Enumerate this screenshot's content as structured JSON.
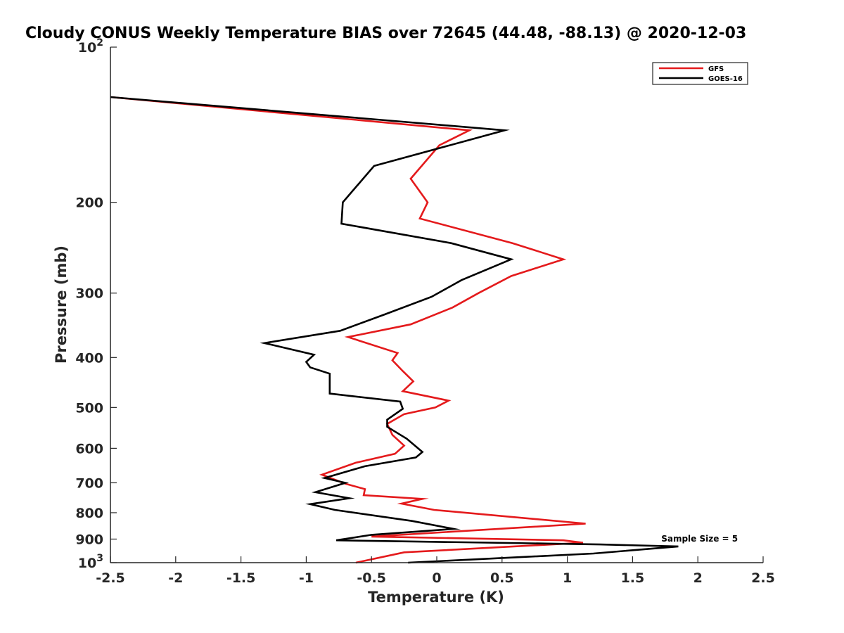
{
  "chart_data": {
    "type": "line",
    "title": "Cloudy CONUS Weekly Temperature BIAS over 72645 (44.48, -88.13) @ 2020-12-03",
    "xlabel": "Temperature (K)",
    "ylabel": "Pressure (mb)",
    "xlim": [
      -2.5,
      2.5
    ],
    "ylim": [
      100,
      1000
    ],
    "yscale": "log",
    "yreversed": true,
    "xticks": [
      "-2.5",
      "-2",
      "-1.5",
      "-1",
      "-0.5",
      "0",
      "0.5",
      "1",
      "1.5",
      "2",
      "2.5"
    ],
    "xtick_values": [
      -2.5,
      -2,
      -1.5,
      -1,
      -0.5,
      0,
      0.5,
      1,
      1.5,
      2,
      2.5
    ],
    "yticks": [
      "200",
      "300",
      "400",
      "500",
      "600",
      "700",
      "800",
      "900"
    ],
    "ytick_values": [
      200,
      300,
      400,
      500,
      600,
      700,
      800,
      900
    ],
    "ytick_extremes": {
      "top": {
        "base": "10",
        "exp": "2",
        "value": 100
      },
      "bottom": {
        "base": "10",
        "exp": "3",
        "value": 1000
      }
    },
    "legend_position": "top-right",
    "grid": false,
    "series": [
      {
        "name": "GFS",
        "color": "#e41a1c",
        "points": [
          [
            -2.5,
            125
          ],
          [
            0.25,
            145
          ],
          [
            0.02,
            155
          ],
          [
            -0.2,
            180
          ],
          [
            -0.07,
            200
          ],
          [
            -0.13,
            215
          ],
          [
            0.58,
            240
          ],
          [
            0.97,
            258
          ],
          [
            0.57,
            278
          ],
          [
            0.32,
            300
          ],
          [
            0.12,
            320
          ],
          [
            -0.2,
            345
          ],
          [
            -0.68,
            365
          ],
          [
            -0.3,
            392
          ],
          [
            -0.34,
            405
          ],
          [
            -0.26,
            425
          ],
          [
            -0.18,
            445
          ],
          [
            -0.26,
            465
          ],
          [
            0.09,
            485
          ],
          [
            -0.01,
            500
          ],
          [
            -0.25,
            515
          ],
          [
            -0.38,
            538
          ],
          [
            -0.34,
            565
          ],
          [
            -0.25,
            593
          ],
          [
            -0.32,
            615
          ],
          [
            -0.62,
            640
          ],
          [
            -0.88,
            675
          ],
          [
            -0.7,
            703
          ],
          [
            -0.55,
            720
          ],
          [
            -0.56,
            740
          ],
          [
            -0.11,
            752
          ],
          [
            -0.27,
            768
          ],
          [
            -0.02,
            790
          ],
          [
            1.14,
            840
          ],
          [
            -0.5,
            890
          ],
          [
            0.97,
            905
          ],
          [
            1.12,
            915
          ],
          [
            -0.25,
            955
          ],
          [
            -0.62,
            1000
          ]
        ]
      },
      {
        "name": "GOES-16",
        "color": "#000000",
        "points": [
          [
            -2.5,
            125
          ],
          [
            0.52,
            145
          ],
          [
            -0.48,
            170
          ],
          [
            -0.72,
            200
          ],
          [
            -0.73,
            220
          ],
          [
            0.11,
            240
          ],
          [
            0.57,
            258
          ],
          [
            0.19,
            283
          ],
          [
            -0.04,
            305
          ],
          [
            -0.4,
            330
          ],
          [
            -0.74,
            355
          ],
          [
            -1.32,
            375
          ],
          [
            -0.94,
            395
          ],
          [
            -1.0,
            408
          ],
          [
            -0.97,
            418
          ],
          [
            -0.82,
            430
          ],
          [
            -0.82,
            470
          ],
          [
            -0.28,
            487
          ],
          [
            -0.26,
            503
          ],
          [
            -0.38,
            528
          ],
          [
            -0.38,
            545
          ],
          [
            -0.23,
            575
          ],
          [
            -0.11,
            610
          ],
          [
            -0.16,
            625
          ],
          [
            -0.55,
            650
          ],
          [
            -0.86,
            685
          ],
          [
            -0.7,
            700
          ],
          [
            -0.93,
            730
          ],
          [
            -0.67,
            750
          ],
          [
            -0.97,
            770
          ],
          [
            -0.78,
            790
          ],
          [
            -0.19,
            830
          ],
          [
            0.13,
            860
          ],
          [
            -0.5,
            883
          ],
          [
            -0.77,
            905
          ],
          [
            0.83,
            918
          ],
          [
            1.25,
            922
          ],
          [
            1.85,
            930
          ],
          [
            1.2,
            960
          ],
          [
            -0.22,
            1000
          ]
        ]
      }
    ],
    "annotations": [
      {
        "text": "Sample Size = 5",
        "x": 1.72,
        "y": 910
      }
    ]
  }
}
